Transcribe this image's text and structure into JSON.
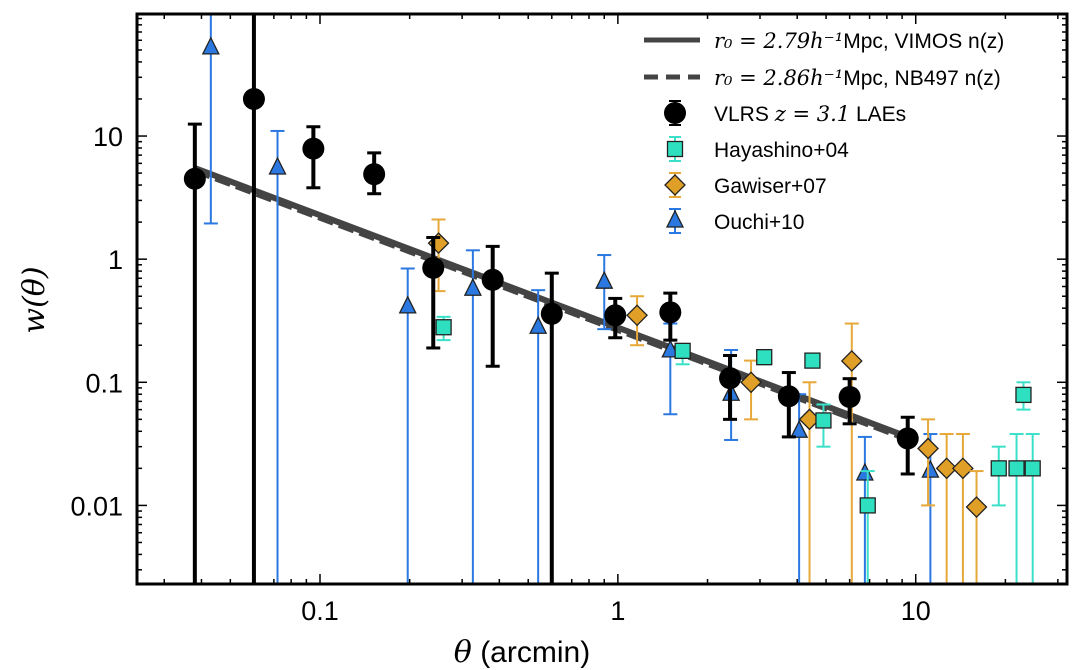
{
  "chart_data": {
    "type": "scatter",
    "title": "",
    "xlabel": "θ (arcmin)",
    "ylabel": "w(θ)",
    "xscale": "log",
    "yscale": "log",
    "xlim": [
      0.0243,
      32.2
    ],
    "ylim": [
      0.0023,
      98
    ],
    "grid": false,
    "legend_position": "top-right",
    "xticks": [
      {
        "v": 0.1,
        "label": "0.1"
      },
      {
        "v": 1,
        "label": "1"
      },
      {
        "v": 10,
        "label": "10"
      }
    ],
    "yticks": [
      {
        "v": 0.01,
        "label": "0.01"
      },
      {
        "v": 0.1,
        "label": "0.1"
      },
      {
        "v": 1,
        "label": "1"
      },
      {
        "v": 10,
        "label": "10"
      }
    ],
    "lines": [
      {
        "name": "r0 = 2.79 h^-1 Mpc, VIMOS n(z)",
        "legend_math": "r₀ = 2.79h⁻¹",
        "legend_text": "Mpc, VIMOS n(z)",
        "style": "solid",
        "color": "#444444",
        "x": [
          0.038,
          9.4
        ],
        "y": [
          5.5,
          0.036
        ]
      },
      {
        "name": "r0 = 2.86 h^-1 Mpc, NB497 n(z)",
        "legend_math": "r₀ = 2.86h⁻¹",
        "legend_text": "Mpc, NB497 n(z)",
        "style": "dashed",
        "color": "#444444",
        "x": [
          0.038,
          9.4
        ],
        "y": [
          5.25,
          0.0345
        ]
      }
    ],
    "series": [
      {
        "name": "Ouchi+10",
        "legend_text": "Ouchi+10",
        "marker": "triangle",
        "color": "#2a78e0",
        "errcolor": "#2a78e0",
        "points": [
          {
            "x": 0.043,
            "y": 52,
            "lo": 1.95,
            "hi": 200
          },
          {
            "x": 0.072,
            "y": 5.5,
            "lo": 0.001,
            "hi": 11
          },
          {
            "x": 0.197,
            "y": 0.41,
            "lo": 0.001,
            "hi": 0.84
          },
          {
            "x": 0.326,
            "y": 0.57,
            "lo": 0.001,
            "hi": 1.18
          },
          {
            "x": 0.54,
            "y": 0.28,
            "lo": 0.001,
            "hi": 0.56
          },
          {
            "x": 0.9,
            "y": 0.65,
            "lo": 0.27,
            "hi": 1.08
          },
          {
            "x": 1.5,
            "y": 0.18,
            "lo": 0.055,
            "hi": 0.3
          },
          {
            "x": 2.4,
            "y": 0.08,
            "lo": 0.034,
            "hi": 0.183
          },
          {
            "x": 4.06,
            "y": 0.04,
            "lo": 0.001,
            "hi": 0.08
          },
          {
            "x": 6.75,
            "y": 0.018,
            "lo": 0.001,
            "hi": 0.036
          },
          {
            "x": 11.2,
            "y": 0.019,
            "lo": 0.001,
            "hi": 0.038
          }
        ]
      },
      {
        "name": "Gawiser+07",
        "legend_text": "Gawiser+07",
        "marker": "diamond",
        "color": "#e0a028",
        "errcolor": "#e6a838",
        "points": [
          {
            "x": 0.25,
            "y": 1.35,
            "lo": 0.55,
            "hi": 2.1
          },
          {
            "x": 1.16,
            "y": 0.35,
            "lo": 0.2,
            "hi": 0.5
          },
          {
            "x": 2.8,
            "y": 0.1,
            "lo": 0.05,
            "hi": 0.15
          },
          {
            "x": 4.4,
            "y": 0.05,
            "lo": 0.001,
            "hi": 0.1
          },
          {
            "x": 6.1,
            "y": 0.149,
            "lo": 0.001,
            "hi": 0.3
          },
          {
            "x": 11.0,
            "y": 0.029,
            "lo": 0.01,
            "hi": 0.05
          },
          {
            "x": 12.7,
            "y": 0.02,
            "lo": 0.001,
            "hi": 0.038
          },
          {
            "x": 14.4,
            "y": 0.02,
            "lo": 0.001,
            "hi": 0.038
          },
          {
            "x": 16.0,
            "y": 0.0097,
            "lo": 0.001,
            "hi": 0.019
          }
        ]
      },
      {
        "name": "Hayashino+04",
        "legend_text": "Hayashino+04",
        "marker": "square",
        "color": "#2fe0c0",
        "errcolor": "#3ae0c8",
        "points": [
          {
            "x": 0.26,
            "y": 0.28,
            "lo": 0.22,
            "hi": 0.34
          },
          {
            "x": 1.65,
            "y": 0.18,
            "lo": 0.14,
            "hi": 0.2
          },
          {
            "x": 3.1,
            "y": 0.16,
            "lo": 0.14,
            "hi": 0.18
          },
          {
            "x": 4.5,
            "y": 0.15,
            "lo": 0.15,
            "hi": 0.15
          },
          {
            "x": 4.9,
            "y": 0.049,
            "lo": 0.03,
            "hi": 0.066
          },
          {
            "x": 6.9,
            "y": 0.01,
            "lo": 0.001,
            "hi": 0.019
          },
          {
            "x": 19.0,
            "y": 0.02,
            "lo": 0.01,
            "hi": 0.03
          },
          {
            "x": 21.8,
            "y": 0.02,
            "lo": 0.001,
            "hi": 0.038
          },
          {
            "x": 23.0,
            "y": 0.079,
            "lo": 0.06,
            "hi": 0.1
          },
          {
            "x": 24.7,
            "y": 0.02,
            "lo": 0.001,
            "hi": 0.038
          }
        ]
      },
      {
        "name": "VLRS z=3.1 LAEs",
        "legend_text_pre": "VLRS ",
        "legend_math": "z = 3.1",
        "legend_text": " LAEs",
        "marker": "circle",
        "color": "#000000",
        "errcolor": "#000000",
        "points": [
          {
            "x": 0.038,
            "y": 4.5,
            "lo": 0.001,
            "hi": 12.5
          },
          {
            "x": 0.06,
            "y": 20,
            "lo": 0.001,
            "hi": 200
          },
          {
            "x": 0.095,
            "y": 7.9,
            "lo": 3.8,
            "hi": 11.9
          },
          {
            "x": 0.152,
            "y": 4.9,
            "lo": 3.4,
            "hi": 7.3
          },
          {
            "x": 0.24,
            "y": 0.85,
            "lo": 0.19,
            "hi": 1.5
          },
          {
            "x": 0.38,
            "y": 0.68,
            "lo": 0.135,
            "hi": 1.27
          },
          {
            "x": 0.6,
            "y": 0.36,
            "lo": 0.001,
            "hi": 0.77
          },
          {
            "x": 0.98,
            "y": 0.35,
            "lo": 0.23,
            "hi": 0.48
          },
          {
            "x": 1.5,
            "y": 0.37,
            "lo": 0.22,
            "hi": 0.53
          },
          {
            "x": 2.38,
            "y": 0.108,
            "lo": 0.05,
            "hi": 0.165
          },
          {
            "x": 3.75,
            "y": 0.077,
            "lo": 0.036,
            "hi": 0.12
          },
          {
            "x": 6.0,
            "y": 0.076,
            "lo": 0.046,
            "hi": 0.107
          },
          {
            "x": 9.4,
            "y": 0.035,
            "lo": 0.018,
            "hi": 0.052
          }
        ]
      }
    ],
    "legend_order": [
      "line0",
      "line1",
      "VLRS z=3.1 LAEs",
      "Hayashino+04",
      "Gawiser+07",
      "Ouchi+10"
    ]
  }
}
